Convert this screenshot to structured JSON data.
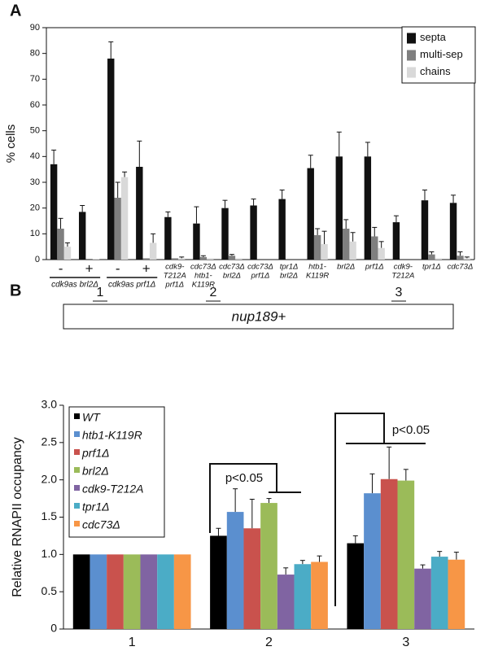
{
  "charts_panel_labels": [
    "A",
    "B"
  ],
  "chart_data": [
    {
      "type": "bar",
      "y_label": "% cells",
      "legend": "upper right",
      "grid": false,
      "categories": [
        [
          "-"
        ],
        [
          "+"
        ],
        [
          "-"
        ],
        [
          "+"
        ],
        [
          "cdk9-",
          "T212A",
          "prf1Δ"
        ],
        [
          "cdc73Δ",
          "htb1-",
          "K119R"
        ],
        [
          "cdc73Δ",
          "brl2Δ"
        ],
        [
          "cdc73Δ",
          "prf1Δ"
        ],
        [
          "tpr1Δ",
          "brl2Δ"
        ],
        [
          "htb1-",
          "K119R"
        ],
        [
          "brl2Δ"
        ],
        [
          "prf1Δ"
        ],
        [
          "cdk9-",
          "T212A"
        ],
        [
          "tpr1Δ"
        ],
        [
          "cdc73Δ"
        ]
      ],
      "group_labels": [
        "cdk9as brl2Δ",
        "cdk9as prf1Δ"
      ],
      "ylim": [
        0,
        90
      ],
      "yticks": [
        0,
        10,
        20,
        30,
        40,
        50,
        60,
        70,
        80,
        90
      ],
      "series": [
        {
          "name": "septa",
          "color": "#111111",
          "values": [
            37,
            18.5,
            78,
            36,
            16.5,
            14,
            20,
            21,
            23.5,
            35.5,
            40,
            40,
            14.5,
            23,
            22
          ],
          "errors": [
            5.5,
            2.5,
            6.5,
            10,
            2,
            6.5,
            3,
            2.5,
            3.5,
            5,
            9.5,
            5.5,
            2.5,
            4,
            3
          ]
        },
        {
          "name": "multi-sep",
          "color": "#7f7f7f",
          "values": [
            12,
            0.3,
            24,
            0.5,
            0.5,
            1,
            1.5,
            0,
            0,
            9.5,
            12,
            9,
            0,
            2,
            1.5
          ],
          "errors": [
            4,
            0,
            6,
            0,
            0,
            0.5,
            0.5,
            0,
            0,
            2.5,
            3.5,
            3.5,
            0,
            1,
            1.5
          ]
        },
        {
          "name": "chains",
          "color": "#d9d9d9",
          "values": [
            5,
            0.3,
            32,
            6.5,
            0.5,
            0.5,
            0.5,
            0,
            0,
            6,
            7,
            4.5,
            0,
            0.5,
            0.5
          ],
          "errors": [
            1.5,
            0,
            2,
            3.5,
            0.5,
            0,
            0,
            0,
            0,
            5,
            3.5,
            2.5,
            0,
            0,
            0.5
          ]
        }
      ]
    },
    {
      "type": "bar",
      "y_label": "Relative RNAPII occupancy",
      "legend": "upper left",
      "grid": false,
      "gene_label": "nup189+",
      "gene_regions": [
        "1",
        "2",
        "3"
      ],
      "annotations": [
        "p<0.05",
        "p<0.05"
      ],
      "categories": [
        "1",
        "2",
        "3"
      ],
      "ylim": [
        0,
        3
      ],
      "yticks": [
        0,
        0.5,
        {
          "value": 1,
          "label": "1.0"
        },
        1.5,
        {
          "value": 2,
          "label": "2.0"
        },
        2.5,
        {
          "value": 3,
          "label": "3.0"
        }
      ],
      "series": [
        {
          "name": "WT",
          "color": "#000000",
          "values": [
            1.0,
            1.25,
            1.15
          ],
          "errors": [
            0,
            0.1,
            0.1
          ]
        },
        {
          "name": "htb1-K119R",
          "color": "#5b8fcf",
          "values": [
            1.0,
            1.57,
            1.82
          ],
          "errors": [
            0,
            0.31,
            0.26
          ]
        },
        {
          "name": "prf1Δ",
          "color": "#c9524d",
          "values": [
            1.0,
            1.35,
            2.01
          ],
          "errors": [
            0,
            0.39,
            0.43
          ]
        },
        {
          "name": "brl2Δ",
          "color": "#9bbb59",
          "values": [
            1.0,
            1.69,
            1.99
          ],
          "errors": [
            0,
            0.06,
            0.15
          ]
        },
        {
          "name": "cdk9-T212A",
          "color": "#8064a2",
          "values": [
            1.0,
            0.73,
            0.81
          ],
          "errors": [
            0,
            0.09,
            0.05
          ]
        },
        {
          "name": "tpr1Δ",
          "color": "#4bacc6",
          "values": [
            1.0,
            0.87,
            0.97
          ],
          "errors": [
            0,
            0.05,
            0.07
          ]
        },
        {
          "name": "cdc73Δ",
          "color": "#f79646",
          "values": [
            1.0,
            0.9,
            0.93
          ],
          "errors": [
            0,
            0.08,
            0.1
          ]
        }
      ]
    }
  ]
}
